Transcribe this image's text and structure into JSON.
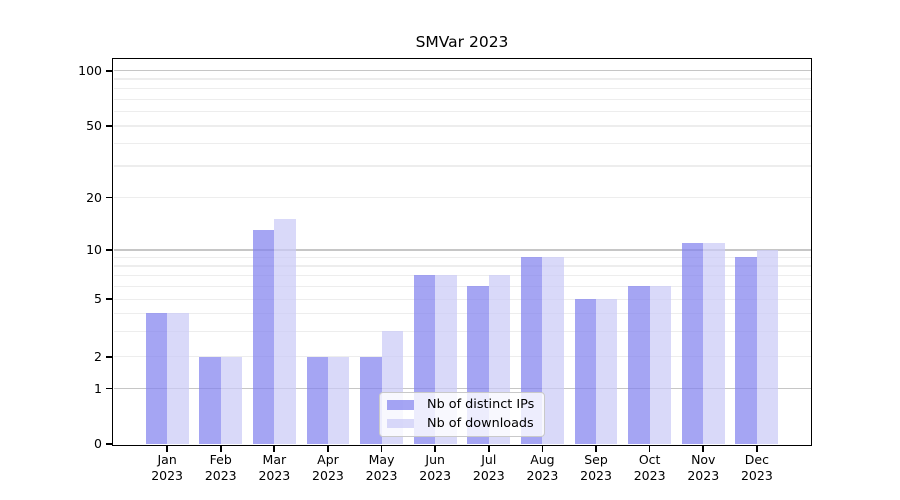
{
  "chart_data": {
    "type": "bar",
    "title": "SMVar 2023",
    "categories": [
      "Jan 2023",
      "Feb 2023",
      "Mar 2023",
      "Apr 2023",
      "May 2023",
      "Jun 2023",
      "Jul 2023",
      "Aug 2023",
      "Sep 2023",
      "Oct 2023",
      "Nov 2023",
      "Dec 2023"
    ],
    "series": [
      {
        "name": "Nb of distinct IPs",
        "color": "rgba(130,130,238,0.72)",
        "values": [
          4,
          2,
          13,
          2,
          2,
          7,
          6,
          9,
          5,
          6,
          11,
          9
        ]
      },
      {
        "name": "Nb of downloads",
        "color": "rgba(203,203,246,0.72)",
        "values": [
          4,
          2,
          15,
          2,
          3,
          7,
          7,
          9,
          5,
          6,
          11,
          10
        ]
      }
    ],
    "xlabel": "",
    "ylabel": "",
    "yaxis": {
      "scale": "symlog",
      "ticks": [
        0,
        1,
        2,
        5,
        10,
        20,
        50,
        100
      ],
      "major_gridlines": [
        1,
        10,
        100
      ],
      "minor_gridlines": [
        2,
        3,
        4,
        5,
        6,
        7,
        8,
        9,
        20,
        30,
        40,
        50,
        60,
        70,
        80,
        90
      ],
      "ylim": [
        0,
        115
      ]
    },
    "legend_position": "lower center",
    "grid": "on"
  }
}
